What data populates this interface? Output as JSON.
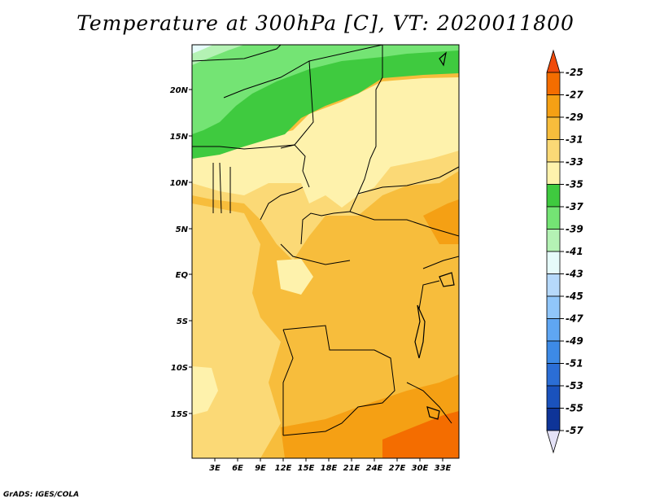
{
  "title": "Temperature at 300hPa [C], VT: 2020011800",
  "credit": "GrADS: IGES/COLA",
  "map": {
    "lat_labels": [
      "20N",
      "15N",
      "10N",
      "5N",
      "EQ",
      "5S",
      "10S",
      "15S"
    ],
    "lon_labels": [
      "3E",
      "6E",
      "9E",
      "12E",
      "15E",
      "18E",
      "21E",
      "24E",
      "27E",
      "30E",
      "33E"
    ]
  },
  "colorbar": {
    "levels": [
      "-25",
      "-27",
      "-29",
      "-31",
      "-33",
      "-35",
      "-37",
      "-39",
      "-41",
      "-43",
      "-45",
      "-47",
      "-49",
      "-51",
      "-53",
      "-55",
      "-57"
    ],
    "colors": {
      "above_-25": "#f04a0a",
      "-27_-25": "#f46d00",
      "-29_-27": "#f5a014",
      "-31_-29": "#f7bd3c",
      "-33_-31": "#fbd976",
      "-35_-33": "#fef2ac",
      "-37_-35": "#3fca3f",
      "-39_-37": "#74e474",
      "-41_-39": "#b4f2b4",
      "-43_-41": "#e6fbfa",
      "-45_-43": "#b6d9fb",
      "-47_-45": "#90c6fa",
      "-49_-47": "#5fa6f3",
      "-51_-49": "#3d8ae6",
      "-53_-51": "#2b6ed6",
      "-55_-53": "#1a52bd",
      "-57_-55": "#0e3498",
      "below_-57": "#e4e2f7"
    }
  }
}
